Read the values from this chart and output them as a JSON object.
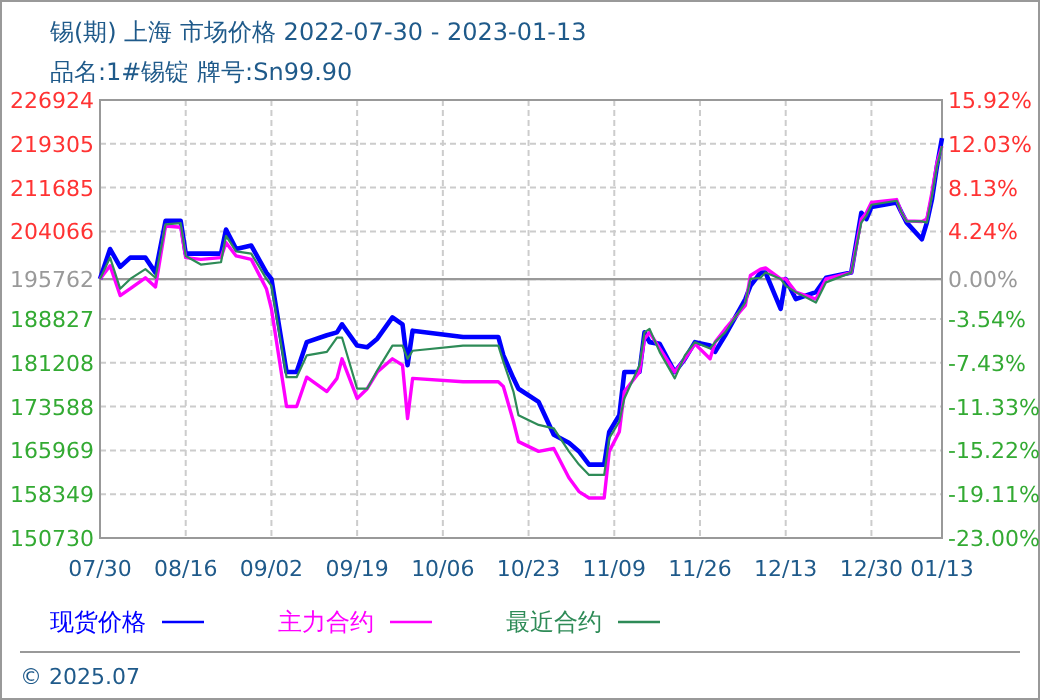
{
  "chart_data": {
    "type": "line",
    "title": "锡(期) 上海 市场价格 2022-07-30 - 2023-01-13",
    "subtitle": "品名:1#锡锭 牌号:Sn99.90",
    "annotations": [
      "© 2025.07"
    ],
    "x": [
      "2022-07-30",
      "2022-08-01",
      "2022-08-03",
      "2022-08-05",
      "2022-08-08",
      "2022-08-10",
      "2022-08-12",
      "2022-08-15",
      "2022-08-16",
      "2022-08-19",
      "2022-08-23",
      "2022-08-24",
      "2022-08-26",
      "2022-08-29",
      "2022-09-01",
      "2022-09-02",
      "2022-09-05",
      "2022-09-07",
      "2022-09-09",
      "2022-09-13",
      "2022-09-15",
      "2022-09-16",
      "2022-09-19",
      "2022-09-21",
      "2022-09-23",
      "2022-09-26",
      "2022-09-28",
      "2022-09-29",
      "2022-09-30",
      "2022-10-10",
      "2022-10-17",
      "2022-10-18",
      "2022-10-20",
      "2022-10-21",
      "2022-10-25",
      "2022-10-28",
      "2022-10-31",
      "2022-11-02",
      "2022-11-04",
      "2022-11-07",
      "2022-11-08",
      "2022-11-10",
      "2022-11-11",
      "2022-11-14",
      "2022-11-15",
      "2022-11-16",
      "2022-11-18",
      "2022-11-21",
      "2022-11-23",
      "2022-11-25",
      "2022-11-28",
      "2022-11-29",
      "2022-12-01",
      "2022-12-05",
      "2022-12-06",
      "2022-12-08",
      "2022-12-09",
      "2022-12-12",
      "2022-12-13",
      "2022-12-15",
      "2022-12-19",
      "2022-12-21",
      "2022-12-26",
      "2022-12-28",
      "2022-12-29",
      "2022-12-30",
      "2023-01-04",
      "2023-01-05",
      "2023-01-06",
      "2023-01-09",
      "2023-01-10",
      "2023-01-11",
      "2023-01-12",
      "2023-01-13"
    ],
    "series": [
      {
        "name": "现货价格",
        "color": "#0000ff",
        "values": [
          195800,
          201000,
          197900,
          199500,
          199500,
          196900,
          205900,
          205900,
          200200,
          200200,
          200200,
          204400,
          201000,
          201600,
          196900,
          195800,
          179600,
          179600,
          184800,
          186000,
          186500,
          187900,
          184200,
          183900,
          185400,
          189100,
          187900,
          180800,
          186800,
          185700,
          185700,
          182500,
          178500,
          176700,
          174400,
          168700,
          167300,
          165800,
          163500,
          163500,
          169200,
          172100,
          179600,
          179600,
          186500,
          184800,
          184500,
          179600,
          181900,
          184800,
          184200,
          183100,
          186000,
          192300,
          194600,
          196900,
          196900,
          190600,
          195800,
          192300,
          193500,
          196000,
          196900,
          207300,
          206200,
          208300,
          209100,
          207300,
          205600,
          202700,
          205600,
          209600,
          215400,
          220300
        ]
      },
      {
        "name": "主力合约",
        "color": "#ff00ff",
        "values": [
          195800,
          198100,
          192900,
          194100,
          196000,
          194400,
          205000,
          204800,
          199500,
          199200,
          199500,
          202100,
          199800,
          199200,
          194100,
          190600,
          173600,
          173600,
          178700,
          176200,
          178500,
          181900,
          175000,
          176700,
          179600,
          181900,
          180800,
          171500,
          178500,
          177900,
          177900,
          177100,
          171000,
          167500,
          165800,
          166300,
          161200,
          158800,
          157700,
          157700,
          165800,
          169200,
          176200,
          179600,
          185400,
          186500,
          183700,
          179600,
          181900,
          184500,
          181900,
          184800,
          187100,
          191200,
          196400,
          197500,
          197700,
          195800,
          195800,
          193500,
          192300,
          195800,
          196900,
          206200,
          207300,
          209100,
          209600,
          207300,
          205900,
          205800,
          206200,
          210800,
          216000,
          218900
        ]
      },
      {
        "name": "最近合约",
        "color": "#2e8b57",
        "values": [
          195800,
          199500,
          194100,
          195800,
          197500,
          196000,
          205300,
          205500,
          199800,
          198300,
          198700,
          203300,
          200600,
          200200,
          195800,
          194600,
          178700,
          178700,
          182500,
          183100,
          185600,
          185600,
          176700,
          176700,
          179900,
          184200,
          184200,
          181900,
          183300,
          184200,
          184200,
          181400,
          176200,
          172100,
          170400,
          169800,
          165800,
          163500,
          161700,
          161700,
          168100,
          171000,
          175000,
          180800,
          186500,
          187100,
          183100,
          178500,
          182500,
          184800,
          183700,
          184800,
          186500,
          191700,
          195800,
          196000,
          196900,
          195800,
          194600,
          193500,
          191700,
          195200,
          196900,
          205600,
          206800,
          208700,
          209400,
          207300,
          205800,
          205800,
          205600,
          210200,
          215400,
          218900
        ]
      }
    ],
    "xlim": [
      "2022-07-30",
      "2023-01-13"
    ],
    "xticks": [
      {
        "value": "2022-07-30",
        "label": "07/30"
      },
      {
        "value": "2022-08-16",
        "label": "08/16"
      },
      {
        "value": "2022-09-02",
        "label": "09/02"
      },
      {
        "value": "2022-09-19",
        "label": "09/19"
      },
      {
        "value": "2022-10-06",
        "label": "10/06"
      },
      {
        "value": "2022-10-23",
        "label": "10/23"
      },
      {
        "value": "2022-11-09",
        "label": "11/09"
      },
      {
        "value": "2022-11-26",
        "label": "11/26"
      },
      {
        "value": "2022-12-13",
        "label": "12/13"
      },
      {
        "value": "2022-12-30",
        "label": "12/30"
      },
      {
        "value": "2023-01-13",
        "label": "01/13"
      }
    ],
    "ylim": [
      150730,
      226924
    ],
    "yticks": [
      150730,
      158349,
      165969,
      173588,
      181208,
      188827,
      195762,
      204066,
      211685,
      219305,
      226924
    ],
    "y2lim": [
      -23.0,
      15.92
    ],
    "y2ticks": [
      {
        "value": -23.0,
        "label": "-23.00%"
      },
      {
        "value": -19.11,
        "label": "-19.11%"
      },
      {
        "value": -15.22,
        "label": "-15.22%"
      },
      {
        "value": -11.33,
        "label": "-11.33%"
      },
      {
        "value": -7.43,
        "label": "-7.43%"
      },
      {
        "value": -3.54,
        "label": "-3.54%"
      },
      {
        "value": 0,
        "label": "0.00%"
      },
      {
        "value": 4.24,
        "label": "4.24%"
      },
      {
        "value": 8.13,
        "label": "8.13%"
      },
      {
        "value": 12.03,
        "label": "12.03%"
      },
      {
        "value": 15.92,
        "label": "15.92%"
      }
    ],
    "ref_lines": [
      {
        "axis": "y",
        "value": 195762,
        "color": "#999999"
      }
    ],
    "grid": true,
    "legend": "bottom",
    "line_style": "solid",
    "marker": "none"
  }
}
